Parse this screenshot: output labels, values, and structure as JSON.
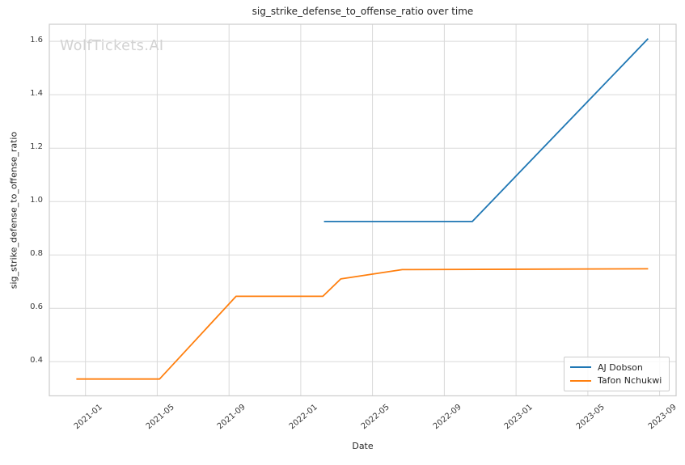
{
  "chart_data": {
    "type": "line",
    "title": "sig_strike_defense_to_offense_ratio over time",
    "xlabel": "Date",
    "ylabel": "sig_strike_defense_to_offense_ratio",
    "watermark": "WolfTickets.AI",
    "legend_position": "lower right",
    "grid": true,
    "y_ticks": [
      0.4,
      0.6,
      0.8,
      1.0,
      1.2,
      1.4,
      1.6
    ],
    "x_ticks": [
      {
        "date": "2021-01-01",
        "label": "2021-01"
      },
      {
        "date": "2021-05-01",
        "label": "2021-05"
      },
      {
        "date": "2021-09-01",
        "label": "2021-09"
      },
      {
        "date": "2022-01-01",
        "label": "2022-01"
      },
      {
        "date": "2022-05-01",
        "label": "2022-05"
      },
      {
        "date": "2022-09-01",
        "label": "2022-09"
      },
      {
        "date": "2023-01-01",
        "label": "2023-01"
      },
      {
        "date": "2023-05-01",
        "label": "2023-05"
      },
      {
        "date": "2023-09-01",
        "label": "2023-09"
      }
    ],
    "x_range": {
      "start": "2020-10-31",
      "end": "2023-09-29"
    },
    "y_range": [
      0.272,
      1.664
    ],
    "series": [
      {
        "name": "AJ Dobson",
        "color": "#1f77b4",
        "points": [
          [
            "2022-02-10",
            0.925
          ],
          [
            "2022-10-18",
            0.925
          ],
          [
            "2023-08-12",
            1.61
          ]
        ]
      },
      {
        "name": "Tafon Nchukwi",
        "color": "#ff7f0e",
        "points": [
          [
            "2020-12-16",
            0.335
          ],
          [
            "2021-05-05",
            0.335
          ],
          [
            "2021-09-13",
            0.645
          ],
          [
            "2022-02-08",
            0.645
          ],
          [
            "2022-03-08",
            0.71
          ],
          [
            "2022-06-21",
            0.745
          ],
          [
            "2023-08-12",
            0.748
          ]
        ]
      }
    ]
  }
}
